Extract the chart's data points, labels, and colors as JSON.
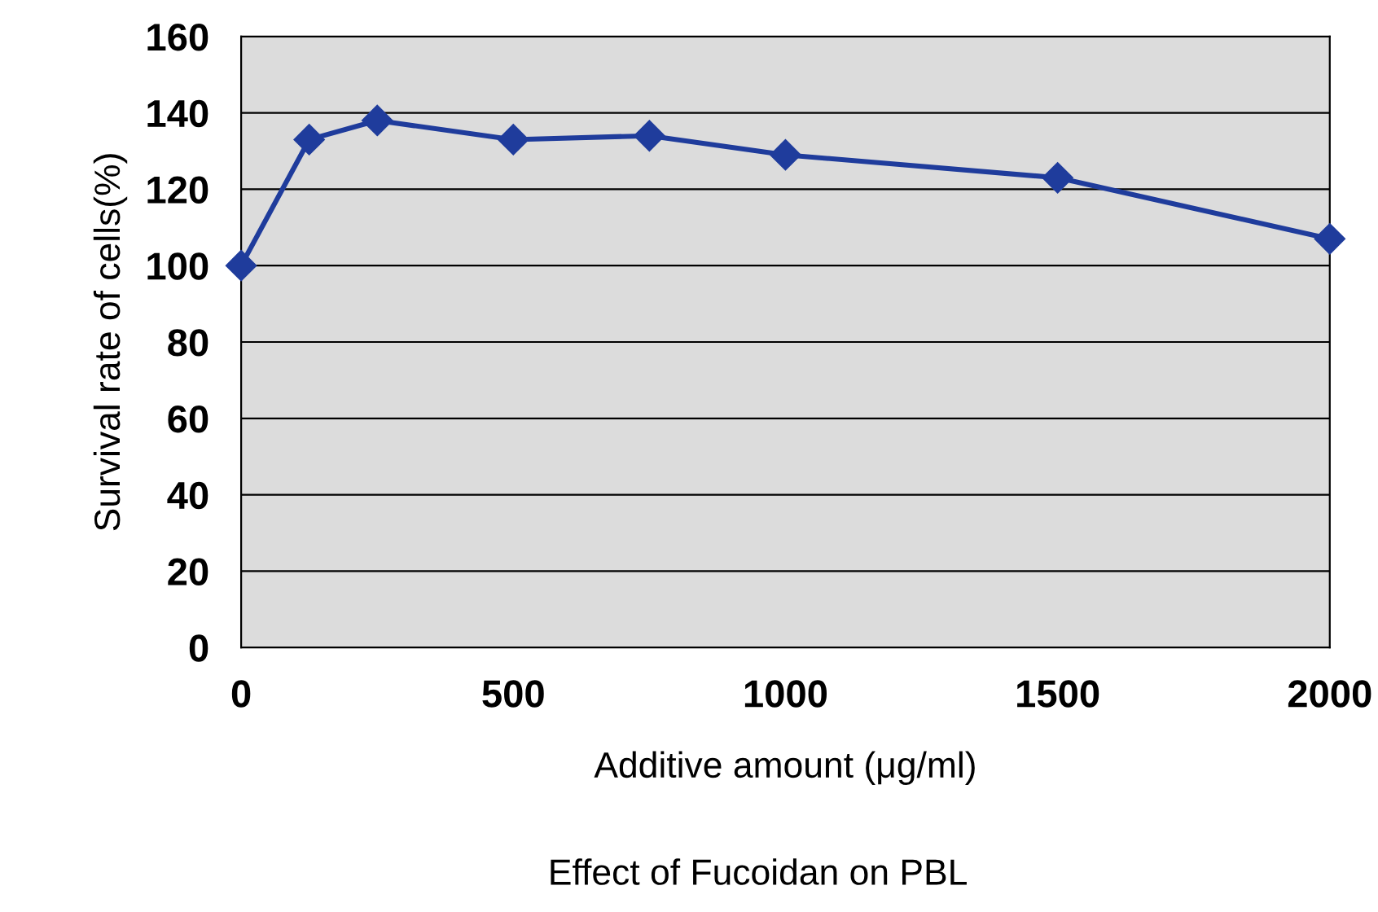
{
  "chart_data": {
    "type": "line",
    "title": "Effect of Fucoidan on PBL",
    "xlabel": "Additive amount (μg/ml)",
    "ylabel": "Survival rate of cells(%)",
    "x": [
      0,
      125,
      250,
      500,
      750,
      1000,
      1500,
      2000
    ],
    "series": [
      {
        "color": "#1f3c9c",
        "values": [
          100,
          133,
          138,
          133,
          134,
          129,
          123,
          107
        ]
      }
    ],
    "xlim": [
      0,
      2000
    ],
    "xticks": [
      0,
      500,
      1000,
      1500,
      2000
    ],
    "ylim": [
      0,
      160
    ],
    "yticks": [
      0,
      20,
      40,
      60,
      80,
      100,
      120,
      140,
      160
    ],
    "grid": "y",
    "marker": "diamond",
    "line_style": "solid",
    "legend": false
  }
}
